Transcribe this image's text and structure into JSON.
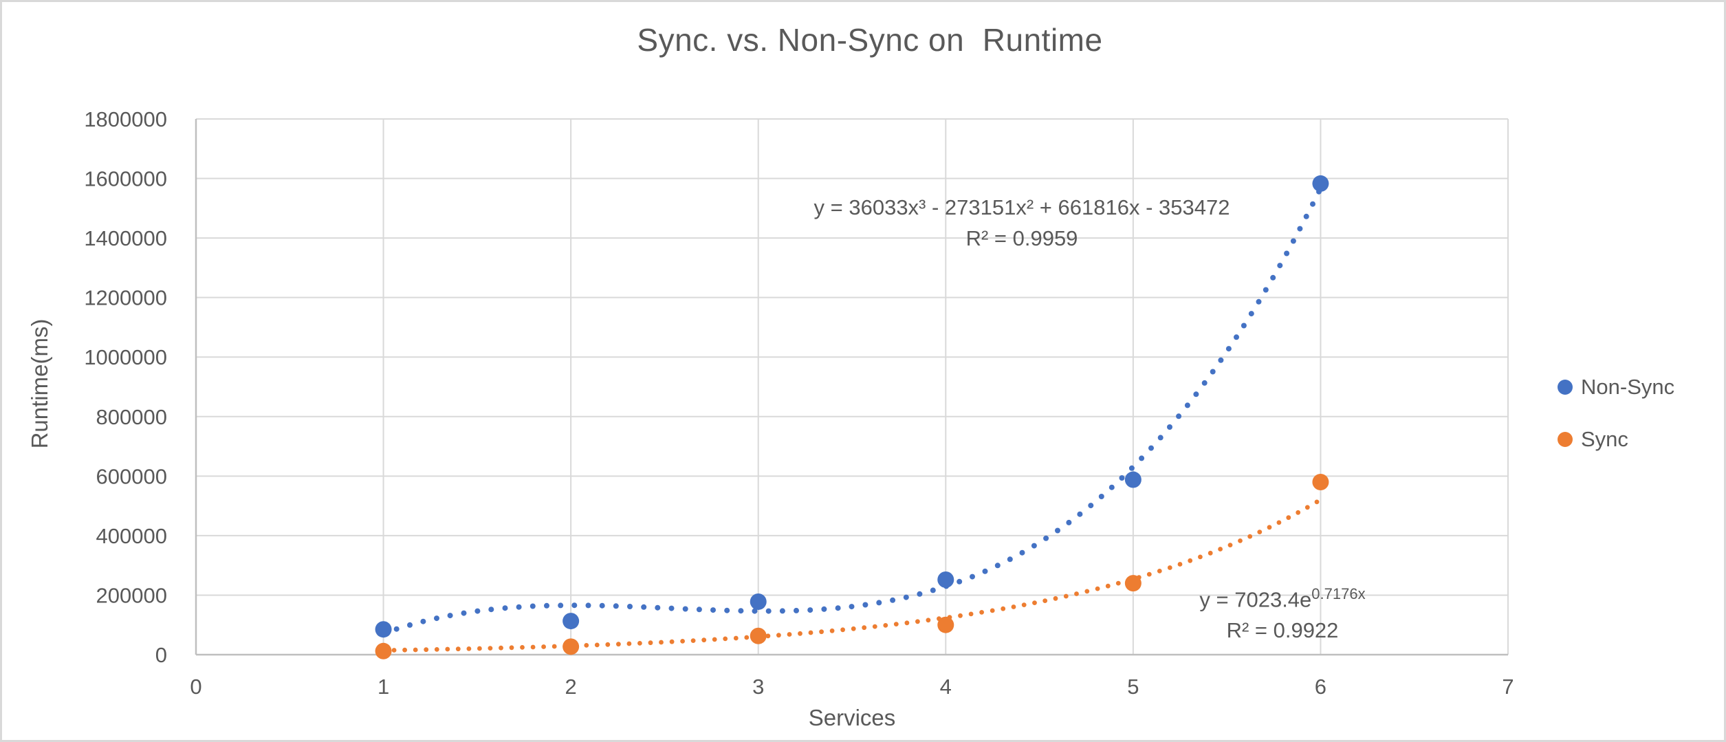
{
  "chart_data": {
    "type": "scatter",
    "title": "Sync. vs. Non-Sync on  Runtime",
    "xlabel": "Services",
    "ylabel": "Runtime(ms)",
    "grid": true,
    "legend_position": "right",
    "x_axis": {
      "min": 0,
      "max": 7,
      "ticks": [
        0,
        1,
        2,
        3,
        4,
        5,
        6,
        7
      ]
    },
    "y_axis": {
      "min": 0,
      "max": 1800000,
      "tick_step": 200000,
      "ticks": [
        0,
        200000,
        400000,
        600000,
        800000,
        1000000,
        1200000,
        1400000,
        1600000,
        1800000
      ]
    },
    "colors": {
      "gridline": "#d9d9d9",
      "axis": "#bfbfbf",
      "text": "#595959"
    },
    "series": [
      {
        "name": "Non-Sync",
        "color": "#4472C4",
        "marker_radius": 12,
        "x": [
          1,
          2,
          3,
          4,
          5,
          6
        ],
        "y": [
          85000,
          113000,
          178000,
          252000,
          588000,
          1583000
        ],
        "trendline": {
          "kind": "polynomial",
          "coefficients": {
            "x3": 36033,
            "x2": -273151,
            "x1": 661816,
            "x0": -353472
          },
          "domain": [
            1,
            6
          ],
          "dot_spacing": 20,
          "dot_radius": 4,
          "equation_label": "y = 36033x³ - 273151x² + 661816x - 353472",
          "r2_label": "R² = 0.9959"
        }
      },
      {
        "name": "Sync",
        "color": "#ED7D31",
        "marker_radius": 12,
        "x": [
          1,
          2,
          3,
          4,
          5,
          6
        ],
        "y": [
          12000,
          27000,
          63000,
          100000,
          240000,
          580000
        ],
        "trendline": {
          "kind": "exponential",
          "a": 7023.4,
          "b": 0.7176,
          "domain": [
            1,
            6
          ],
          "dot_spacing": 15.5,
          "dot_radius": 3.4,
          "equation_base": "y = 7023.4e",
          "equation_exponent": "0.7176x",
          "r2_label": "R² = 0.9922"
        }
      }
    ]
  }
}
